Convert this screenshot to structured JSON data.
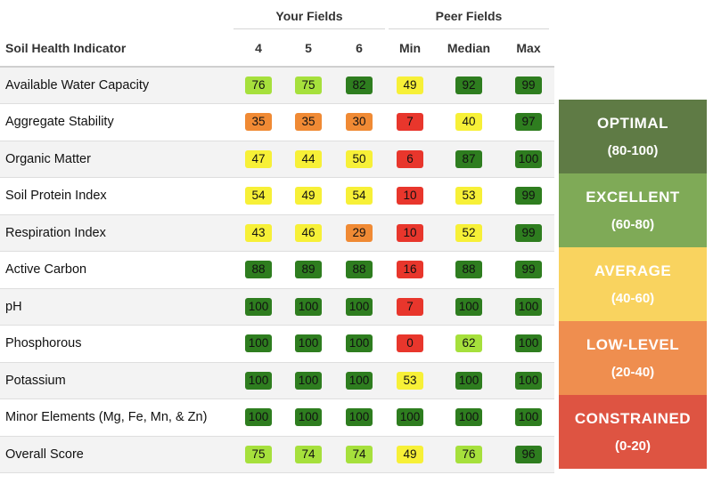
{
  "headers": {
    "your_fields": "Your Fields",
    "peer_fields": "Peer Fields",
    "indicator": "Soil Health Indicator",
    "columns": [
      "4",
      "5",
      "6",
      "Min",
      "Median",
      "Max"
    ]
  },
  "rows": [
    {
      "label": "Available Water Capacity",
      "values": [
        "76",
        "75",
        "82",
        "49",
        "92",
        "99"
      ]
    },
    {
      "label": "Aggregate Stability",
      "values": [
        "35",
        "35",
        "30",
        "7",
        "40",
        "97"
      ]
    },
    {
      "label": "Organic Matter",
      "values": [
        "47",
        "44",
        "50",
        "6",
        "87",
        "100"
      ]
    },
    {
      "label": "Soil Protein Index",
      "values": [
        "54",
        "49",
        "54",
        "10",
        "53",
        "99"
      ]
    },
    {
      "label": "Respiration Index",
      "values": [
        "43",
        "46",
        "29",
        "10",
        "52",
        "99"
      ]
    },
    {
      "label": "Active Carbon",
      "values": [
        "88",
        "89",
        "88",
        "16",
        "88",
        "99"
      ]
    },
    {
      "label": "pH",
      "values": [
        "100",
        "100",
        "100",
        "7",
        "100",
        "100"
      ]
    },
    {
      "label": "Phosphorous",
      "values": [
        "100",
        "100",
        "100",
        "0",
        "62",
        "100"
      ]
    },
    {
      "label": "Potassium",
      "values": [
        "100",
        "100",
        "100",
        "53",
        "100",
        "100"
      ]
    },
    {
      "label": "Minor Elements (Mg, Fe, Mn, & Zn)",
      "values": [
        "100",
        "100",
        "100",
        "100",
        "100",
        "100"
      ]
    },
    {
      "label": "Overall Score",
      "values": [
        "75",
        "74",
        "74",
        "49",
        "76",
        "96"
      ]
    }
  ],
  "legend": [
    {
      "name": "OPTIMAL",
      "range": "(80-100)",
      "color": "#5f7b45"
    },
    {
      "name": "EXCELLENT",
      "range": "(60-80)",
      "color": "#7faa57"
    },
    {
      "name": "AVERAGE",
      "range": "(40-60)",
      "color": "#f9d35f"
    },
    {
      "name": "LOW-LEVEL",
      "range": "(20-40)",
      "color": "#ef8e4f"
    },
    {
      "name": "CONSTRAINED",
      "range": "(0-20)",
      "color": "#de5442"
    }
  ]
}
